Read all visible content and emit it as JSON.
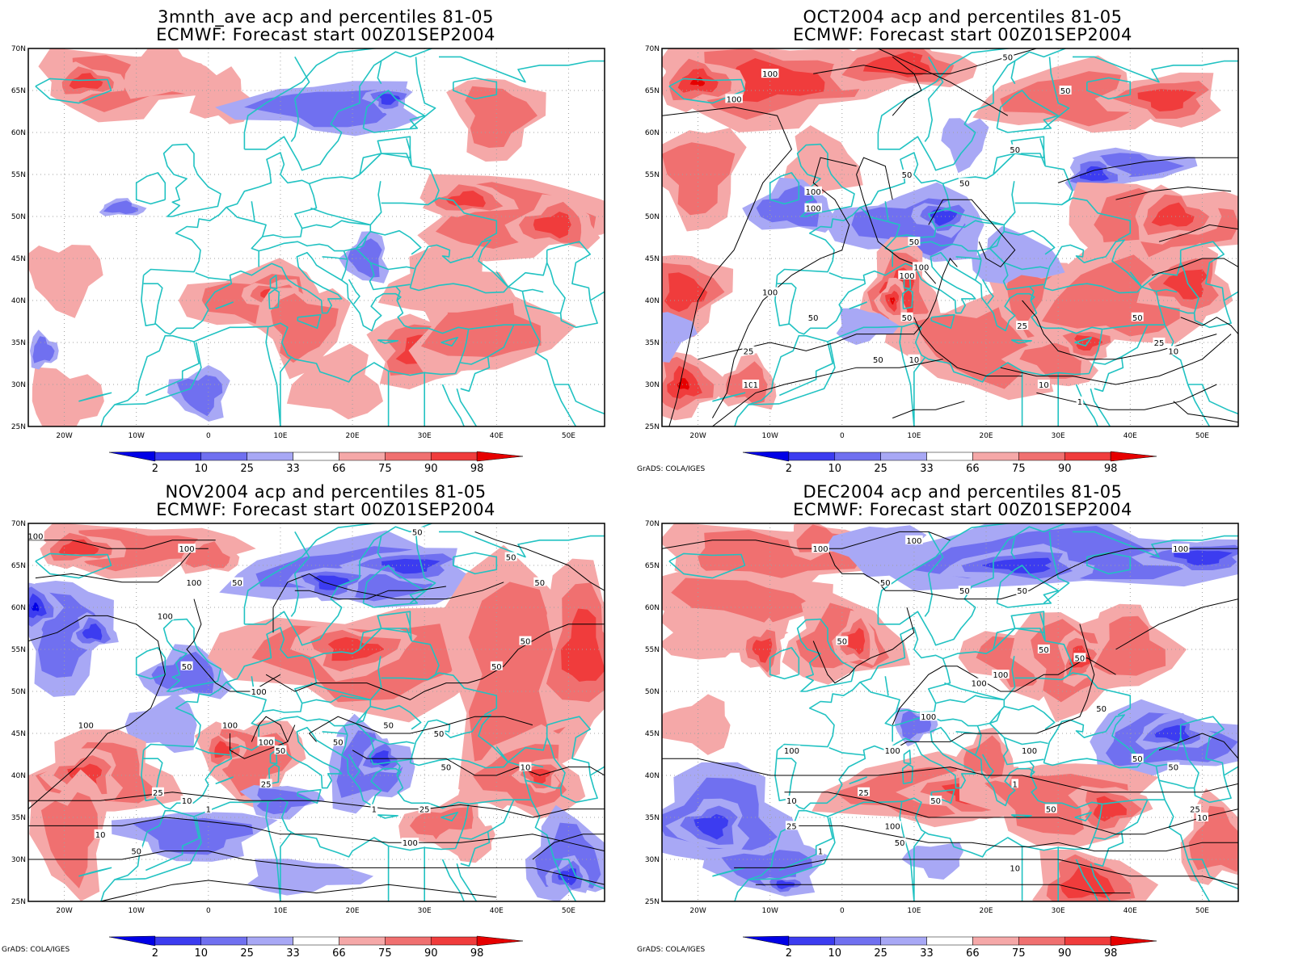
{
  "panels": [
    {
      "title_line1": "3mnth_ave acp and percentiles 81-05",
      "title_line2": "ECMWF: Forecast start 00Z01SEP2004",
      "credit": "",
      "contour_labels": []
    },
    {
      "title_line1": "OCT2004 acp and percentiles 81-05",
      "title_line2": "ECMWF: Forecast start 00Z01SEP2004",
      "credit": "GrADS: COLA/IGES",
      "contour_labels": [
        "100",
        "100",
        "50",
        "50",
        "100",
        "50",
        "50",
        "50",
        "100",
        "50",
        "100",
        "100",
        "100",
        "50",
        "50",
        "25",
        "50",
        "10",
        "25",
        "10",
        "10",
        "1",
        "1",
        "50",
        "25",
        "10"
      ]
    },
    {
      "title_line1": "NOV2004 acp and percentiles 81-05",
      "title_line2": "ECMWF: Forecast start 00Z01SEP2004",
      "credit": "GrADS: COLA/IGES",
      "contour_labels": [
        "100",
        "100",
        "100",
        "50",
        "50",
        "50",
        "50",
        "100",
        "50",
        "50",
        "50",
        "100",
        "100",
        "100",
        "100",
        "50",
        "50",
        "50",
        "50",
        "25",
        "50",
        "10",
        "25",
        "10",
        "1",
        "1",
        "25",
        "10",
        "100",
        "50"
      ]
    },
    {
      "title_line1": "DEC2004 acp and percentiles 81-05",
      "title_line2": "ECMWF: Forecast start 00Z01SEP2004",
      "credit": "GrADS: COLA/IGES",
      "contour_labels": [
        "100",
        "100",
        "50",
        "50",
        "50",
        "100",
        "50",
        "50",
        "50",
        "50",
        "100",
        "100",
        "100",
        "100",
        "100",
        "100",
        "50",
        "50",
        "25",
        "10",
        "1",
        "50",
        "25",
        "10",
        "50",
        "25",
        "100",
        "50",
        "1",
        "10"
      ]
    }
  ],
  "axes": {
    "lat_labels": [
      "70N",
      "65N",
      "60N",
      "55N",
      "50N",
      "45N",
      "40N",
      "35N",
      "30N",
      "25N"
    ],
    "lon_labels": [
      "20W",
      "10W",
      "0",
      "10E",
      "20E",
      "30E",
      "40E",
      "50E"
    ]
  },
  "colorbar": {
    "labels": [
      "2",
      "10",
      "25",
      "33",
      "66",
      "75",
      "90",
      "98"
    ],
    "colors": [
      "#0000e6",
      "#3c3cf0",
      "#7070f0",
      "#a8a8f5",
      "#ffffff",
      "#f5a8a8",
      "#f07070",
      "#f03c3c",
      "#e60000"
    ]
  },
  "colors": {
    "coast": "#21c2c2",
    "contour": "#000000",
    "grid": "#a0a0a0"
  }
}
